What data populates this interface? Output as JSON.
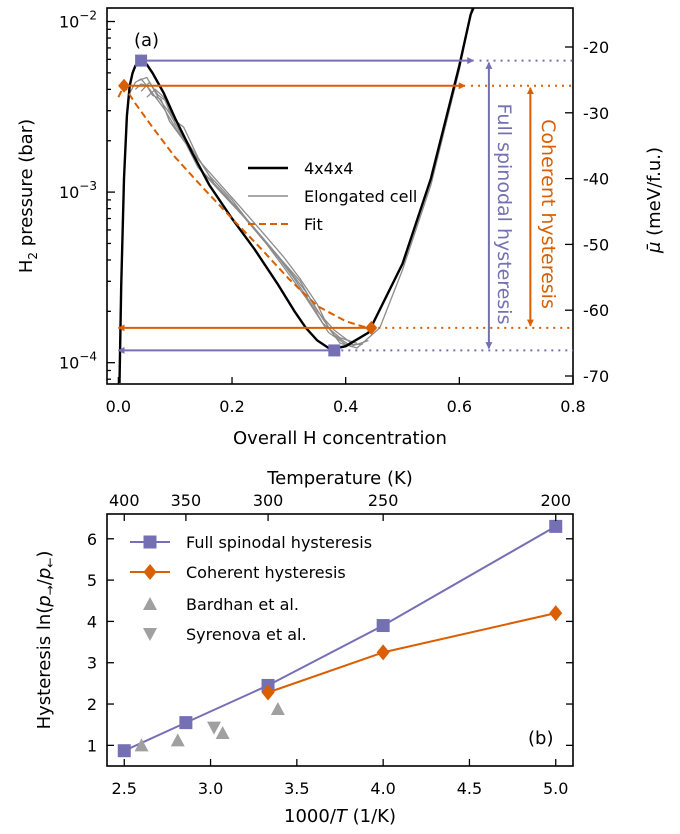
{
  "colors": {
    "full": "#7570b3",
    "coherent": "#d95f02",
    "grey": "#8c8c8c",
    "lightgrey": "#a0a0a0",
    "black": "#000000"
  },
  "chart_data": [
    {
      "type": "line",
      "panel_label": "(a)",
      "xlabel": "Overall H concentration",
      "ylabel_left": "H₂ pressure (bar)",
      "ylabel_right_symbol": "μ",
      "ylabel_right_unit": " (meV/f.u.)",
      "xlim": [
        -0.02,
        0.8
      ],
      "ylim_log": [
        7.5e-05,
        0.012
      ],
      "yscale": "log",
      "x_ticks": [
        0.0,
        0.2,
        0.4,
        0.6,
        0.8
      ],
      "x_tick_labels": [
        "0.0",
        "0.2",
        "0.4",
        "0.6",
        "0.8"
      ],
      "y_ticks": [
        {
          "value": 0.0001,
          "base": "10",
          "exp": "−4"
        },
        {
          "value": 0.001,
          "base": "10",
          "exp": "−3"
        },
        {
          "value": 0.01,
          "base": "10",
          "exp": "−2"
        }
      ],
      "right_ticks": [
        -20,
        -30,
        -40,
        -50,
        -60,
        -70
      ],
      "legend": [
        "4x4x4",
        "Elongated cell",
        "Fit"
      ],
      "legend_position": "center",
      "series": [
        {
          "name": "4x4x4",
          "style": "solid-black",
          "points": [
            [
              0.002,
              7.6e-05
            ],
            [
              0.005,
              0.00028
            ],
            [
              0.01,
              0.0012
            ],
            [
              0.015,
              0.0028
            ],
            [
              0.02,
              0.0042
            ],
            [
              0.025,
              0.005
            ],
            [
              0.03,
              0.0055
            ],
            [
              0.04,
              0.0057
            ],
            [
              0.05,
              0.0056
            ],
            [
              0.06,
              0.005
            ],
            [
              0.08,
              0.0038
            ],
            [
              0.1,
              0.0027
            ],
            [
              0.13,
              0.0017
            ],
            [
              0.16,
              0.0011
            ],
            [
              0.2,
              0.0007
            ],
            [
              0.24,
              0.00046
            ],
            [
              0.28,
              0.00029
            ],
            [
              0.31,
              0.0002
            ],
            [
              0.33,
              0.00016
            ],
            [
              0.35,
              0.000135
            ],
            [
              0.37,
              0.000122
            ],
            [
              0.38,
              0.000121
            ],
            [
              0.4,
              0.000125
            ],
            [
              0.44,
              0.00015
            ],
            [
              0.5,
              0.00038
            ],
            [
              0.55,
              0.0012
            ],
            [
              0.6,
              0.0055
            ],
            [
              0.62,
              0.011
            ],
            [
              0.625,
              0.012
            ]
          ]
        },
        {
          "name": "Elongated cell",
          "style": "grey-lines",
          "lines": [
            [
              [
                0.002,
                7.6e-05
              ],
              [
                0.005,
                0.00028
              ],
              [
                0.01,
                0.0012
              ],
              [
                0.015,
                0.0027
              ],
              [
                0.02,
                0.0038
              ],
              [
                0.03,
                0.0044
              ],
              [
                0.04,
                0.0046
              ],
              [
                0.05,
                0.0042
              ],
              [
                0.06,
                0.0038
              ],
              [
                0.08,
                0.0031
              ],
              [
                0.1,
                0.0024
              ],
              [
                0.13,
                0.0017
              ],
              [
                0.17,
                0.0012
              ],
              [
                0.21,
                0.00085
              ],
              [
                0.25,
                0.0006
              ],
              [
                0.29,
                0.00042
              ],
              [
                0.32,
                0.00031
              ],
              [
                0.35,
                0.00022
              ],
              [
                0.37,
                0.00016
              ],
              [
                0.39,
                0.00013
              ],
              [
                0.42,
                0.000122
              ],
              [
                0.46,
                0.00016
              ],
              [
                0.5,
                0.00035
              ],
              [
                0.55,
                0.0011
              ],
              [
                0.6,
                0.0052
              ],
              [
                0.622,
                0.012
              ]
            ],
            [
              [
                0.03,
                0.004
              ],
              [
                0.04,
                0.0043
              ],
              [
                0.05,
                0.0042
              ],
              [
                0.06,
                0.0037
              ],
              [
                0.075,
                0.0035
              ],
              [
                0.09,
                0.0026
              ],
              [
                0.12,
                0.0019
              ],
              [
                0.15,
                0.0013
              ],
              [
                0.19,
                0.00095
              ],
              [
                0.23,
                0.00066
              ],
              [
                0.27,
                0.00046
              ],
              [
                0.3,
                0.00035
              ],
              [
                0.33,
                0.00026
              ],
              [
                0.36,
                0.00018
              ],
              [
                0.38,
                0.000145
              ],
              [
                0.41,
                0.000125
              ],
              [
                0.44,
                0.000135
              ]
            ],
            [
              [
                0.035,
                0.0045
              ],
              [
                0.05,
                0.0047
              ],
              [
                0.07,
                0.0036
              ],
              [
                0.09,
                0.0029
              ],
              [
                0.11,
                0.0022
              ],
              [
                0.14,
                0.0014
              ],
              [
                0.18,
                0.001
              ],
              [
                0.22,
                0.00072
              ],
              [
                0.26,
                0.0005
              ],
              [
                0.3,
                0.00033
              ],
              [
                0.33,
                0.00024
              ],
              [
                0.35,
                0.00019
              ],
              [
                0.37,
                0.00015
              ],
              [
                0.4,
                0.000128
              ],
              [
                0.43,
                0.000128
              ]
            ],
            [
              [
                0.04,
                0.0039
              ],
              [
                0.055,
                0.0044
              ],
              [
                0.07,
                0.0037
              ],
              [
                0.085,
                0.0034
              ],
              [
                0.1,
                0.0025
              ],
              [
                0.12,
                0.002
              ],
              [
                0.16,
                0.00125
              ],
              [
                0.2,
                0.0009
              ],
              [
                0.24,
                0.0006
              ],
              [
                0.28,
                0.00042
              ],
              [
                0.31,
                0.00031
              ],
              [
                0.34,
                0.00022
              ],
              [
                0.36,
                0.00017
              ],
              [
                0.39,
                0.00014
              ],
              [
                0.42,
                0.00013
              ]
            ],
            [
              [
                0.05,
                0.0036
              ],
              [
                0.065,
                0.004
              ],
              [
                0.08,
                0.0036
              ],
              [
                0.095,
                0.0027
              ],
              [
                0.115,
                0.0024
              ],
              [
                0.14,
                0.0016
              ],
              [
                0.17,
                0.0011
              ],
              [
                0.21,
                0.0008
              ],
              [
                0.25,
                0.00056
              ],
              [
                0.29,
                0.00039
              ],
              [
                0.32,
                0.0003
              ],
              [
                0.35,
                0.0002
              ],
              [
                0.38,
                0.000155
              ],
              [
                0.41,
                0.00013
              ]
            ]
          ]
        },
        {
          "name": "Fit",
          "style": "dashed-orange",
          "points": [
            [
              0.0,
              0.0036
            ],
            [
              0.01,
              0.0042
            ],
            [
              0.03,
              0.0033
            ],
            [
              0.06,
              0.0024
            ],
            [
              0.1,
              0.0016
            ],
            [
              0.15,
              0.00105
            ],
            [
              0.2,
              0.0007
            ],
            [
              0.25,
              0.00047
            ],
            [
              0.3,
              0.00031
            ],
            [
              0.35,
              0.000215
            ],
            [
              0.4,
              0.000175
            ],
            [
              0.43,
              0.000163
            ],
            [
              0.445,
              0.00016
            ]
          ]
        }
      ],
      "markers": {
        "full_upper": {
          "x": 0.04,
          "y": 0.0059,
          "arrow_to_x": 0.625
        },
        "full_lower": {
          "x": 0.38,
          "y": 0.000118,
          "arrow_to_x": 0.0
        },
        "coherent_upper": {
          "x": 0.01,
          "y": 0.0042,
          "arrow_to_x": 0.61
        },
        "coherent_lower": {
          "x": 0.445,
          "y": 0.00016,
          "arrow_to_x": 0.0
        }
      },
      "annotations": {
        "full": "Full spinodal hysteresis",
        "coherent": "Coherent hysteresis",
        "full_arrow_x": 0.652,
        "coherent_arrow_x": 0.725
      }
    },
    {
      "type": "scatter",
      "panel_label": "(b)",
      "xlabel_prefix": "1000/",
      "xlabel_var": "T",
      "xlabel_suffix": " (1/K)",
      "x2label": "Temperature (K)",
      "ylabel_prefix": "Hysteresis ln(",
      "ylabel_p1": "p",
      "ylabel_s1": "→",
      "ylabel_mid": "/",
      "ylabel_p2": "p",
      "ylabel_s2": "←",
      "ylabel_suffix": ")",
      "xlim": [
        2.4,
        5.1
      ],
      "ylim": [
        0.5,
        6.6
      ],
      "x_ticks": [
        2.5,
        3.0,
        3.5,
        4.0,
        4.5,
        5.0
      ],
      "x_tick_labels": [
        "2.5",
        "3.0",
        "3.5",
        "4.0",
        "4.5",
        "5.0"
      ],
      "y_ticks": [
        1,
        2,
        3,
        4,
        5,
        6
      ],
      "temperature_ticks": [
        400,
        350,
        300,
        250,
        200
      ],
      "legend_position": "top-left",
      "series": [
        {
          "name": "Full spinodal hysteresis",
          "marker": "square",
          "line": true,
          "x": [
            2.5,
            2.857,
            3.333,
            4.0,
            5.0
          ],
          "y": [
            0.87,
            1.55,
            2.45,
            3.9,
            6.3
          ]
        },
        {
          "name": "Coherent hysteresis",
          "marker": "diamond",
          "line": true,
          "x": [
            3.333,
            4.0,
            5.0
          ],
          "y": [
            2.28,
            3.25,
            4.2
          ]
        },
        {
          "name": "Bardhan et al.",
          "marker": "triangle-up",
          "line": false,
          "x": [
            2.6,
            2.81,
            3.07,
            3.39
          ],
          "y": [
            1.0,
            1.12,
            1.3,
            1.88
          ]
        },
        {
          "name": "Syrenova et al.",
          "marker": "triangle-down",
          "line": false,
          "x": [
            3.02
          ],
          "y": [
            1.43
          ]
        }
      ]
    }
  ]
}
